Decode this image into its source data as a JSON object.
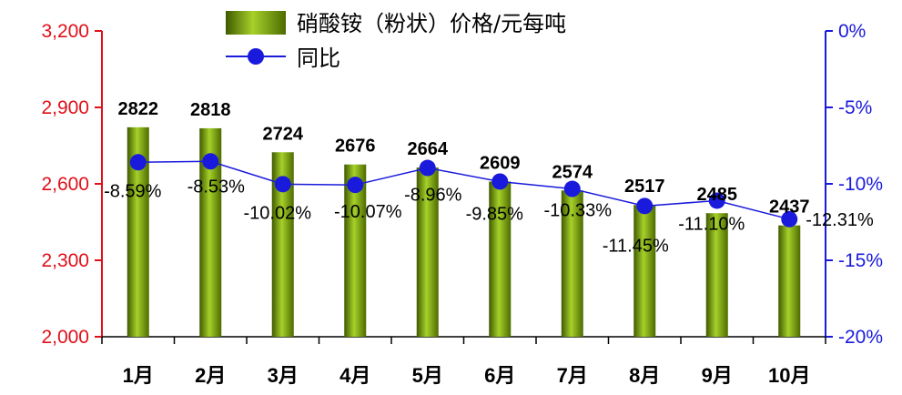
{
  "chart_data": {
    "type": "bar",
    "categories": [
      "1月",
      "2月",
      "3月",
      "4月",
      "5月",
      "6月",
      "7月",
      "8月",
      "9月",
      "10月"
    ],
    "series": [
      {
        "name": "硝酸铵（粉状）价格/元每吨",
        "kind": "bar",
        "axis": "left",
        "color": "#6f9a00",
        "values": [
          2822,
          2818,
          2724,
          2676,
          2664,
          2609,
          2574,
          2517,
          2485,
          2437
        ],
        "labels": [
          "2822",
          "2818",
          "2724",
          "2676",
          "2664",
          "2609",
          "2574",
          "2517",
          "2485",
          "2437"
        ]
      },
      {
        "name": "同比",
        "kind": "line",
        "axis": "right",
        "color": "#1a1adc",
        "values": [
          -8.59,
          -8.53,
          -10.02,
          -10.07,
          -8.96,
          -9.85,
          -10.33,
          -11.45,
          -11.1,
          -12.31
        ],
        "labels": [
          "-8.59%",
          "-8.53%",
          "-10.02%",
          "-10.07%",
          "-8.96%",
          "-9.85%",
          "-10.33%",
          "-11.45%",
          "-11.10%",
          "-12.31%"
        ]
      }
    ],
    "y_left": {
      "range": [
        2000,
        3200
      ],
      "ticks": [
        2000,
        2300,
        2600,
        2900,
        3200
      ],
      "tick_labels": [
        "2,000",
        "2,300",
        "2,600",
        "2,900",
        "3,200"
      ],
      "color": "#e0101a"
    },
    "y_right": {
      "range": [
        -20,
        0
      ],
      "ticks": [
        -20,
        -15,
        -10,
        -5,
        0
      ],
      "tick_labels": [
        "-20%",
        "-15%",
        "-10%",
        "-5%",
        "0%"
      ],
      "color": "#1a1adc"
    },
    "legend_position": "top-center",
    "grid": false
  }
}
